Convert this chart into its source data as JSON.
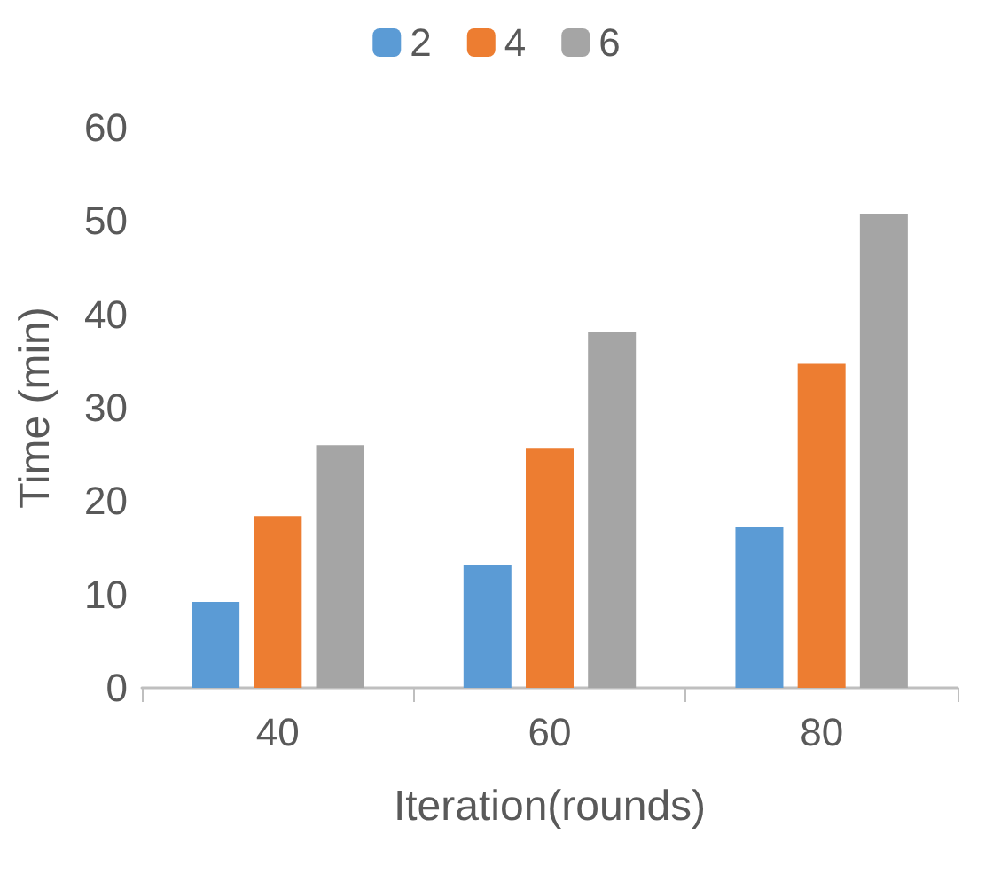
{
  "chart_data": {
    "type": "bar",
    "xlabel": "Iteration(rounds)",
    "ylabel": "Time (min)",
    "categories": [
      "40",
      "60",
      "80"
    ],
    "series": [
      {
        "name": "2",
        "color": "#5b9bd5",
        "values": [
          9.2,
          13.2,
          17.2
        ]
      },
      {
        "name": "4",
        "color": "#ed7d31",
        "values": [
          18.4,
          25.7,
          34.7
        ]
      },
      {
        "name": "6",
        "color": "#a5a5a5",
        "values": [
          26,
          38.1,
          50.8
        ]
      }
    ],
    "ylim": [
      0,
      60
    ],
    "yticks": [
      0,
      10,
      20,
      30,
      40,
      50,
      60
    ],
    "grid": false,
    "legend": "top"
  }
}
